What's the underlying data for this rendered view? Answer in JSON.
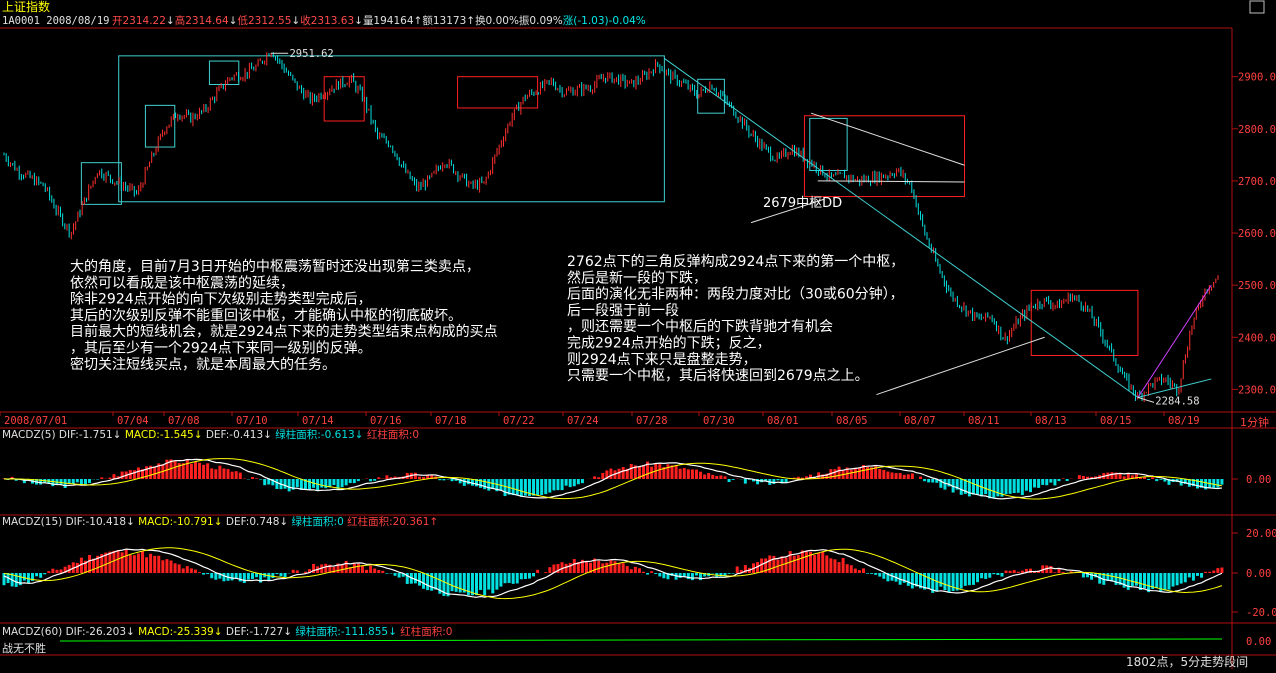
{
  "window": {
    "title": "上证指数",
    "window_button": "□"
  },
  "quote_bar": {
    "code_date": "1A0001 2008/08/19",
    "items": [
      {
        "text": "开2314.22",
        "color": "#ff4a4a"
      },
      {
        "text": "↓",
        "color": "#e0e0e0"
      },
      {
        "text": "高2314.64",
        "color": "#ff4a4a"
      },
      {
        "text": "↓",
        "color": "#e0e0e0"
      },
      {
        "text": "低2312.55",
        "color": "#ff4a4a"
      },
      {
        "text": "↓",
        "color": "#e0e0e0"
      },
      {
        "text": "收2313.63",
        "color": "#ff4a4a"
      },
      {
        "text": "↓",
        "color": "#e0e0e0"
      },
      {
        "text": "量194164",
        "color": "#e0e0e0"
      },
      {
        "text": "↑",
        "color": "#e0e0e0"
      },
      {
        "text": "额13173",
        "color": "#e0e0e0"
      },
      {
        "text": "↑",
        "color": "#e0e0e0"
      },
      {
        "text": "换0.00%",
        "color": "#e0e0e0"
      },
      {
        "text": "振0.09%",
        "color": "#e0e0e0"
      },
      {
        "text": "涨(-1.03)-0.04%",
        "color": "#00e8e8"
      }
    ]
  },
  "chart_data": [
    {
      "type": "candlestick",
      "title": "上证指数",
      "x_axis_dates": [
        "2008/07/01",
        "07/04",
        "07/08",
        "07/10",
        "07/14",
        "07/16",
        "07/18",
        "07/22",
        "07/24",
        "07/28",
        "07/30",
        "08/01",
        "08/05",
        "08/07",
        "08/11",
        "08/13",
        "08/15",
        "08/19"
      ],
      "y_ticks": [
        "2900.00",
        "2800.00",
        "2700.00",
        "2600.00",
        "2500.00",
        "2400.00",
        "2300.00"
      ],
      "ylim": [
        2270,
        2980
      ],
      "price_path": [
        [
          0,
          2750
        ],
        [
          1,
          2720
        ],
        [
          2,
          2705
        ],
        [
          3,
          2690
        ],
        [
          4,
          2640
        ],
        [
          5,
          2600
        ],
        [
          6,
          2660
        ],
        [
          7,
          2720
        ],
        [
          8,
          2705
        ],
        [
          9,
          2690
        ],
        [
          10,
          2675
        ],
        [
          11,
          2740
        ],
        [
          12,
          2800
        ],
        [
          13,
          2830
        ],
        [
          14,
          2820
        ],
        [
          15,
          2835
        ],
        [
          16,
          2870
        ],
        [
          17,
          2900
        ],
        [
          18,
          2905
        ],
        [
          19,
          2920
        ],
        [
          20,
          2951.62
        ],
        [
          21,
          2915
        ],
        [
          22,
          2880
        ],
        [
          23,
          2855
        ],
        [
          24,
          2870
        ],
        [
          25,
          2885
        ],
        [
          26,
          2895
        ],
        [
          27,
          2855
        ],
        [
          28,
          2785
        ],
        [
          29,
          2770
        ],
        [
          30,
          2720
        ],
        [
          31,
          2685
        ],
        [
          32,
          2705
        ],
        [
          33,
          2740
        ],
        [
          34,
          2715
        ],
        [
          35,
          2690
        ],
        [
          36,
          2695
        ],
        [
          37,
          2760
        ],
        [
          38,
          2820
        ],
        [
          39,
          2860
        ],
        [
          40,
          2875
        ],
        [
          41,
          2890
        ],
        [
          42,
          2870
        ],
        [
          43,
          2875
        ],
        [
          44,
          2880
        ],
        [
          45,
          2900
        ],
        [
          46,
          2895
        ],
        [
          47,
          2885
        ],
        [
          48,
          2900
        ],
        [
          49,
          2924
        ],
        [
          50,
          2900
        ],
        [
          51,
          2885
        ],
        [
          52,
          2865
        ],
        [
          53,
          2885
        ],
        [
          54,
          2855
        ],
        [
          55,
          2825
        ],
        [
          56,
          2790
        ],
        [
          57,
          2762
        ],
        [
          58,
          2740
        ],
        [
          59,
          2762
        ],
        [
          60,
          2745
        ],
        [
          61,
          2725
        ],
        [
          62,
          2705
        ],
        [
          63,
          2710
        ],
        [
          64,
          2700
        ],
        [
          65,
          2705
        ],
        [
          66,
          2710
        ],
        [
          67,
          2720
        ],
        [
          68,
          2690
        ],
        [
          69,
          2600
        ],
        [
          70,
          2535
        ],
        [
          71,
          2480
        ],
        [
          72,
          2455
        ],
        [
          73,
          2435
        ],
        [
          74,
          2440
        ],
        [
          75,
          2395
        ],
        [
          76,
          2430
        ],
        [
          77,
          2460
        ],
        [
          78,
          2470
        ],
        [
          79,
          2460
        ],
        [
          80,
          2480
        ],
        [
          81,
          2460
        ],
        [
          82,
          2420
        ],
        [
          83,
          2370
        ],
        [
          84,
          2320
        ],
        [
          85,
          2284.58
        ],
        [
          86,
          2310
        ],
        [
          87,
          2320
        ],
        [
          88,
          2300
        ],
        [
          89,
          2420
        ],
        [
          90,
          2490
        ],
        [
          91,
          2515
        ]
      ],
      "annotations": {
        "high_label": "2951.62",
        "low_label": "2284.58",
        "center_label": "2679中枢DD",
        "text_left": [
          "大的角度，目前7月3日开始的中枢震荡暂时还没出现第三类卖点，",
          "依然可以看成是该中枢震荡的延续，",
          "除非2924点开始的向下次级别走势类型完成后，",
          "其后的次级别反弹不能重回该中枢，才能确认中枢的彻底破坏。",
          "目前最大的短线机会，就是2924点下来的走势类型结束点构成的买点",
          "，其后至少有一个2924点下来同一级别的反弹。",
          "密切关注短线买点，就是本周最大的任务。"
        ],
        "text_right": [
          "2762点下的三角反弹构成2924点下来的第一个中枢，",
          "然后是新一段的下跌，",
          "后面的演化无非两种：两段力度对比（30或60分钟），",
          "后一段强于前一段",
          "，则还需要一个中枢后的下跌背驰才有机会",
          "完成2924点开始的下跌；反之，",
          "则2924点下来只是盘整走势，",
          "只需要一个中枢，其后将快速回到2679点之上。"
        ]
      },
      "period_label": "1分钟"
    },
    {
      "type": "macd",
      "label": "MACDZ(5)",
      "dif": "DIF:-1.751↓",
      "macd": "MACD:-1.545↓",
      "def": "DEF:-0.413↓",
      "green_area": "绿柱面积:-0.613↓",
      "red_area": "红柱面积:0",
      "y_ticks": [
        "0.00"
      ]
    },
    {
      "type": "macd",
      "label": "MACDZ(15)",
      "dif": "DIF:-10.418↓",
      "macd": "MACD:-10.791↓",
      "def": "DEF:0.748↓",
      "green_area": "绿柱面积:0",
      "red_area": "红柱面积:20.361↑",
      "y_ticks": [
        "20.00",
        "0.00",
        "-20.00"
      ]
    },
    {
      "type": "macd",
      "label": "MACDZ(60)",
      "dif": "DIF:-26.203↓",
      "macd": "MACD:-25.339↓",
      "def": "DEF:-1.727↓",
      "green_area": "绿柱面积:-111.855↓",
      "red_area": "红柱面积:0",
      "y_ticks": [
        "0.00"
      ]
    }
  ],
  "footer": {
    "left_text": "战无不胜",
    "right_text": "1802点，5分走势段间"
  },
  "colors": {
    "candle_up": "#ff3030",
    "candle_down": "#00e0e0",
    "zone_red": "#ff2020",
    "zone_cyan": "#40d0d0",
    "trend_magenta": "#d040ff",
    "axis": "#b01010",
    "dif": "#ffffff",
    "dea": "#ffff00",
    "macd_line2": "#00ff00"
  }
}
